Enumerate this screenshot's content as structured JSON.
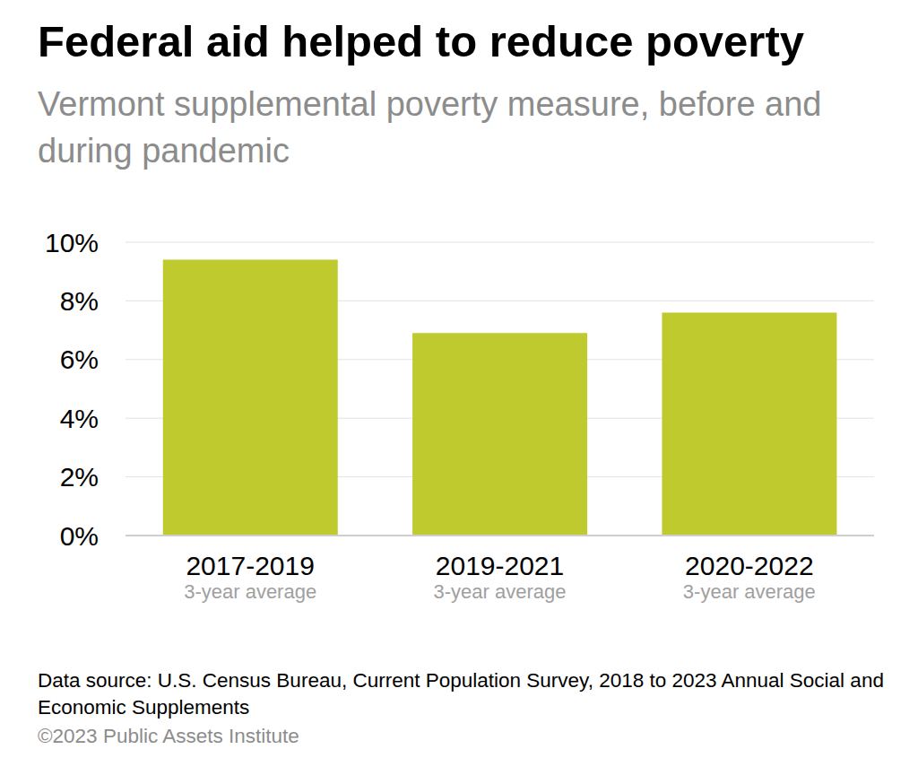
{
  "chart_data": {
    "type": "bar",
    "title": "Federal aid helped to reduce poverty",
    "subtitle": "Vermont supplemental poverty measure, before and during pandemic",
    "categories": [
      "2017-2019",
      "2019-2021",
      "2020-2022"
    ],
    "category_sublabels": [
      "3-year average",
      "3-year average",
      "3-year average"
    ],
    "values": [
      9.4,
      6.9,
      7.6
    ],
    "color": "#bfca2f",
    "ylim": [
      0,
      10
    ],
    "yticks": [
      {
        "value": 0,
        "label": "0%"
      },
      {
        "value": 2,
        "label": "2%"
      },
      {
        "value": 4,
        "label": "4%"
      },
      {
        "value": 6,
        "label": "6%"
      },
      {
        "value": 8,
        "label": "8%"
      },
      {
        "value": 10,
        "label": "10%"
      }
    ],
    "grid": true,
    "source": "Data source: U.S. Census Bureau, Current Population Survey, 2018 to 2023 Annual Social and Economic Supplements",
    "credit": "©2023 Public Assets Institute"
  }
}
